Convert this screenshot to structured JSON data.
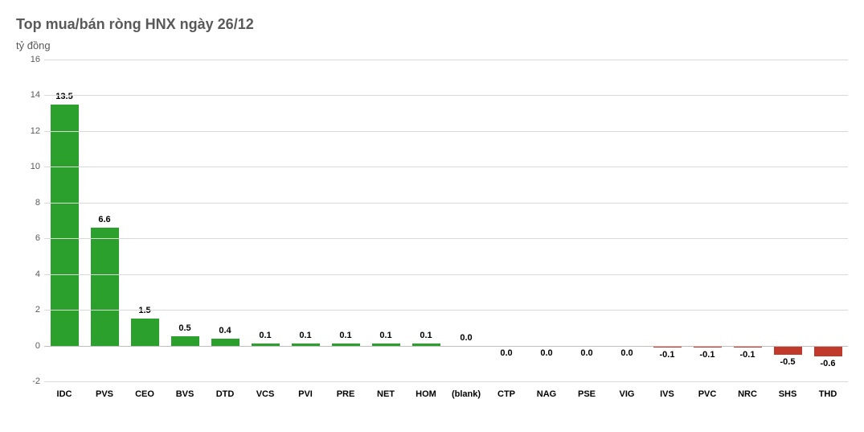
{
  "chart": {
    "type": "bar",
    "title": "Top mua/bán ròng HNX ngày 26/12",
    "subtitle": "tỷ đồng",
    "title_fontsize": 18,
    "subtitle_fontsize": 13,
    "title_color": "#595959",
    "background_color": "#ffffff",
    "grid_color": "#d9d9d9",
    "axis_color": "#bfbfbf",
    "label_color": "#000000",
    "label_fontsize": 11,
    "ylim": [
      -2,
      16
    ],
    "ytick_step": 2,
    "yticks": [
      -2,
      0,
      2,
      4,
      6,
      8,
      10,
      12,
      14,
      16
    ],
    "bar_width": 0.7,
    "positive_color": "#2ca02c",
    "negative_color": "#c0392b",
    "categories": [
      "IDC",
      "PVS",
      "CEO",
      "BVS",
      "DTD",
      "VCS",
      "PVI",
      "PRE",
      "NET",
      "HOM",
      "(blank)",
      "CTP",
      "NAG",
      "PSE",
      "VIG",
      "IVS",
      "PVC",
      "NRC",
      "SHS",
      "THD"
    ],
    "values": [
      13.5,
      6.6,
      1.5,
      0.5,
      0.4,
      0.1,
      0.1,
      0.1,
      0.1,
      0.1,
      0.0,
      -0.02,
      -0.02,
      -0.02,
      -0.02,
      -0.1,
      -0.1,
      -0.1,
      -0.5,
      -0.6
    ],
    "value_labels": [
      "13.5",
      "6.6",
      "1.5",
      "0.5",
      "0.4",
      "0.1",
      "0.1",
      "0.1",
      "0.1",
      "0.1",
      "0.0",
      "0.0",
      "0.0",
      "0.0",
      "0.0",
      "-0.1",
      "-0.1",
      "-0.1",
      "-0.5",
      "-0.6"
    ]
  }
}
